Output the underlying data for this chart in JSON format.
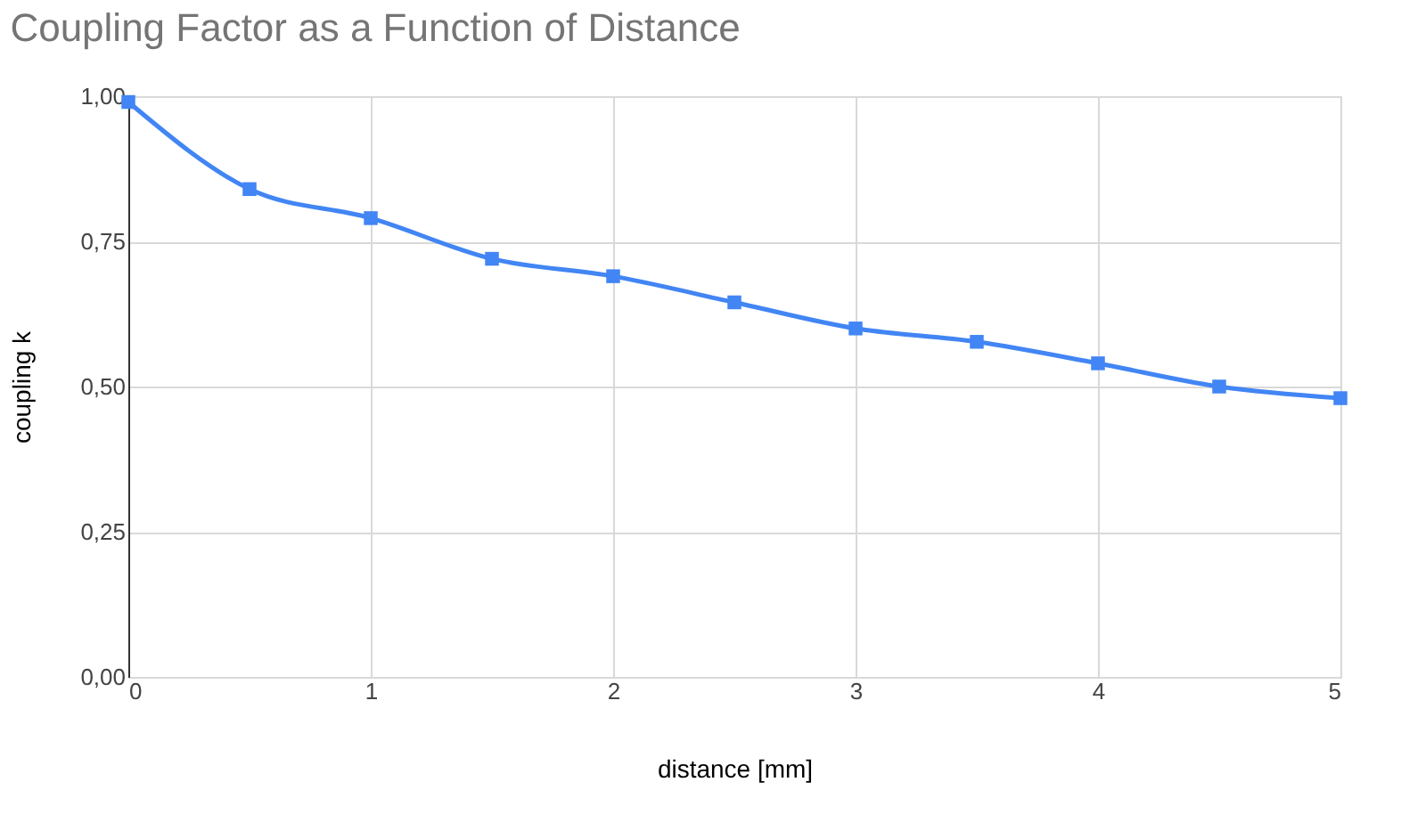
{
  "chart_data": {
    "type": "line",
    "title": "Coupling Factor as a Function of Distance",
    "xlabel": "distance [mm]",
    "ylabel": "coupling k",
    "x": [
      0,
      0.5,
      1,
      1.5,
      2,
      2.5,
      3,
      3.5,
      4,
      4.5,
      5
    ],
    "series": [
      {
        "color": "#4285f4",
        "values": [
          0.99,
          0.84,
          0.79,
          0.72,
          0.69,
          0.645,
          0.6,
          0.577,
          0.54,
          0.5,
          0.48
        ]
      }
    ],
    "xlim": [
      0,
      5
    ],
    "xticks": [
      0,
      1,
      2,
      3,
      4,
      5
    ],
    "ylim": [
      0,
      1
    ],
    "yticks": [
      {
        "value": 0,
        "label": "0,00"
      },
      {
        "value": 0.25,
        "label": "0,25"
      },
      {
        "value": 0.5,
        "label": "0,50"
      },
      {
        "value": 0.75,
        "label": "0,75"
      },
      {
        "value": 1,
        "label": "1,00"
      }
    ],
    "grid": true,
    "marker": "square",
    "line_style": "solid"
  }
}
